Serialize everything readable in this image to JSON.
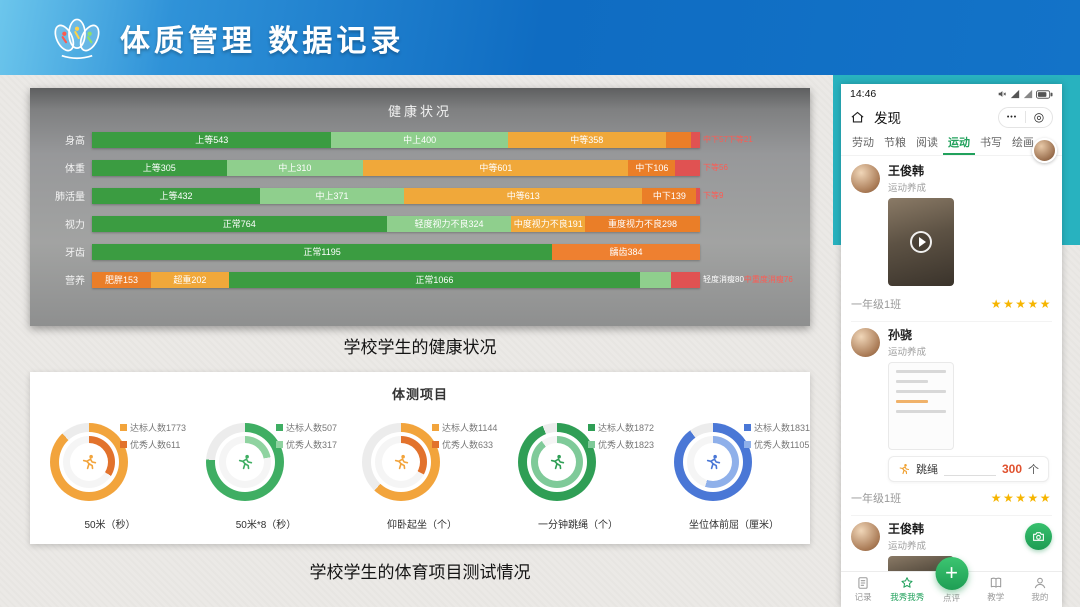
{
  "header": {
    "title": "体质管理  数据记录"
  },
  "captions": {
    "health": "学校学生的健康状况",
    "sports": "学校学生的体育项目测试情况"
  },
  "chart_data": [
    {
      "type": "bar",
      "title": "健康状况",
      "orientation": "horizontal",
      "stacked": true,
      "legend_position": "none",
      "rows": [
        {
          "label": "身高",
          "segments": [
            {
              "name": "上等",
              "value": 543,
              "color": "#3b9c41"
            },
            {
              "name": "中上",
              "value": 400,
              "color": "#8fcf8d"
            },
            {
              "name": "中等",
              "value": 358,
              "color": "#f0a83a"
            },
            {
              "name": "中下",
              "value": 57,
              "color": "#ea7e28",
              "hide_label": true
            },
            {
              "name": "下等",
              "value": 21,
              "color": "#e05252",
              "hide_label": true
            }
          ],
          "outside_parts": [
            {
              "text": "中下57下等21",
              "color": "#ff5a52"
            }
          ]
        },
        {
          "label": "体重",
          "segments": [
            {
              "name": "上等",
              "value": 305,
              "color": "#3b9c41"
            },
            {
              "name": "中上",
              "value": 310,
              "color": "#8fcf8d"
            },
            {
              "name": "中等",
              "value": 601,
              "color": "#f0a83a"
            },
            {
              "name": "中下",
              "value": 106,
              "color": "#ea7e28"
            },
            {
              "name": "下等",
              "value": 56,
              "color": "#e05252",
              "hide_label": true
            }
          ],
          "outside_parts": [
            {
              "text": "下等56",
              "color": "#ff5a52"
            }
          ]
        },
        {
          "label": "肺活量",
          "segments": [
            {
              "name": "上等",
              "value": 432,
              "color": "#3b9c41"
            },
            {
              "name": "中上",
              "value": 371,
              "color": "#8fcf8d"
            },
            {
              "name": "中等",
              "value": 613,
              "color": "#f0a83a"
            },
            {
              "name": "中下",
              "value": 139,
              "color": "#ea7e28"
            },
            {
              "name": "下等",
              "value": 9,
              "color": "#e05252",
              "hide_label": true
            }
          ],
          "outside_parts": [
            {
              "text": "下等9",
              "color": "#ff5a52"
            }
          ]
        },
        {
          "label": "视力",
          "segments": [
            {
              "name": "正常",
              "value": 764,
              "color": "#3b9c41"
            },
            {
              "name": "轻度视力不良",
              "value": 324,
              "color": "#8fcf8d"
            },
            {
              "name": "中度视力不良",
              "value": 191,
              "color": "#f0a83a"
            },
            {
              "name": "重度视力不良",
              "value": 298,
              "color": "#ea7e28"
            }
          ],
          "outside_parts": []
        },
        {
          "label": "牙齿",
          "segments": [
            {
              "name": "正常",
              "value": 1195,
              "color": "#3b9c41"
            },
            {
              "name": "龋齿",
              "value": 384,
              "color": "#ee8030"
            }
          ],
          "outside_parts": []
        },
        {
          "label": "营养",
          "segments": [
            {
              "name": "肥胖",
              "value": 153,
              "color": "#ea7e28"
            },
            {
              "name": "超重",
              "value": 202,
              "color": "#f0a83a"
            },
            {
              "name": "正常",
              "value": 1066,
              "color": "#3b9c41"
            },
            {
              "name": "轻度消瘦",
              "value": 80,
              "color": "#8fcf8d",
              "hide_label": true
            },
            {
              "name": "中重度消瘦",
              "value": 76,
              "color": "#e05252",
              "hide_label": true
            }
          ],
          "outside_parts": [
            {
              "text": "轻度消瘦80",
              "color": "#ffffff"
            },
            {
              "text": "中重度消瘦76",
              "color": "#ff5a52"
            }
          ]
        }
      ]
    },
    {
      "type": "donut-group",
      "title": "体测项目",
      "items": [
        {
          "label": "50米（秒）",
          "metrics": [
            {
              "name": "达标人数",
              "value": 1773
            },
            {
              "name": "优秀人数",
              "value": 611
            }
          ],
          "outer_color": "#f2a43c",
          "inner_color": "#e2722c",
          "outer_pct": 88,
          "inner_pct": 34
        },
        {
          "label": "50米*8（秒）",
          "metrics": [
            {
              "name": "达标人数",
              "value": 507
            },
            {
              "name": "优秀人数",
              "value": 317
            }
          ],
          "outer_color": "#3fae63",
          "inner_color": "#8fd3a0",
          "outer_pct": 76,
          "inner_pct": 22
        },
        {
          "label": "仰卧起坐（个）",
          "metrics": [
            {
              "name": "达标人数",
              "value": 1144
            },
            {
              "name": "优秀人数",
              "value": 633
            }
          ],
          "outer_color": "#f2a43c",
          "inner_color": "#e2722c",
          "outer_pct": 62,
          "inner_pct": 33
        },
        {
          "label": "一分钟跳绳（个）",
          "metrics": [
            {
              "name": "达标人数",
              "value": 1872
            },
            {
              "name": "优秀人数",
              "value": 1823
            }
          ],
          "outer_color": "#2f9e55",
          "inner_color": "#7fca99",
          "outer_pct": 94,
          "inner_pct": 90
        },
        {
          "label": "坐位体前屈（厘米）",
          "metrics": [
            {
              "name": "达标人数",
              "value": 1831
            },
            {
              "name": "优秀人数",
              "value": 1105
            }
          ],
          "outer_color": "#4a77d6",
          "inner_color": "#8fb0ea",
          "outer_pct": 90,
          "inner_pct": 55
        }
      ]
    }
  ],
  "phone": {
    "status": {
      "time": "14:46"
    },
    "nav": {
      "page": "发现"
    },
    "capsule": {
      "more": "•••",
      "target": "◎"
    },
    "tabs": [
      {
        "label": "劳动"
      },
      {
        "label": "节粮"
      },
      {
        "label": "阅读"
      },
      {
        "label": "运动",
        "active": true
      },
      {
        "label": "书写"
      },
      {
        "label": "绘画"
      }
    ],
    "feed": [
      {
        "name": "王俊韩",
        "sub": "运动养成",
        "media": "video",
        "class_name": "一年级1班",
        "stars": 5
      },
      {
        "name": "孙骁",
        "sub": "运动养成",
        "media": "doc",
        "pill": {
          "label": "跳绳",
          "value": "300",
          "unit": "个"
        },
        "class_name": "一年级1班",
        "stars": 5
      },
      {
        "name": "王俊韩",
        "sub": "运动养成",
        "media": "video",
        "partial": true,
        "camera": true
      }
    ],
    "tabbar": [
      {
        "label": "记录",
        "icon": "record-icon"
      },
      {
        "label": "我秀我秀",
        "icon": "show-icon",
        "active": true
      },
      {
        "label": "点评",
        "icon": "plus-fab",
        "fab": true
      },
      {
        "label": "教学",
        "icon": "teach-icon"
      },
      {
        "label": "我的",
        "icon": "me-icon"
      }
    ]
  }
}
